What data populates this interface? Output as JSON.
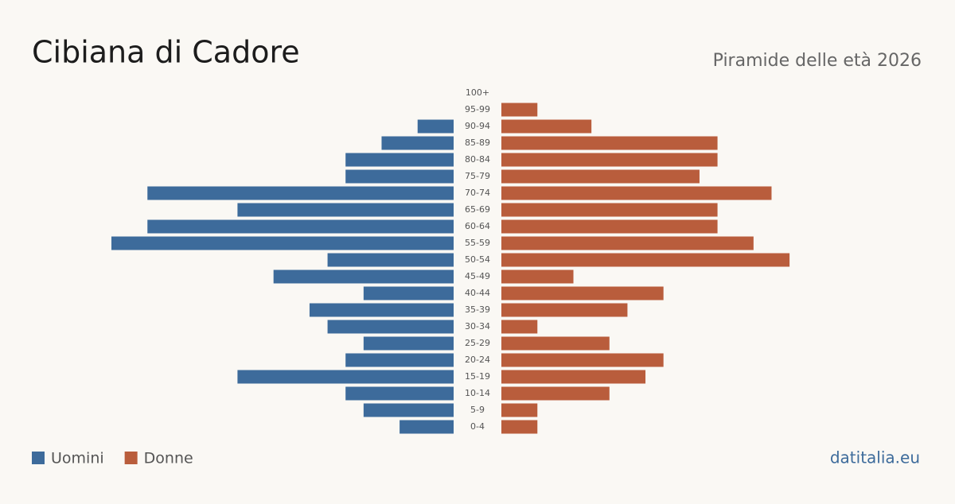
{
  "chart_data": {
    "type": "pyramid",
    "title": "Cibiana di Cadore",
    "subtitle": "Piramide delle età 2026",
    "source": "datitalia.eu",
    "categories": [
      "100+",
      "95-99",
      "90-94",
      "85-89",
      "80-84",
      "75-79",
      "70-74",
      "65-69",
      "60-64",
      "55-59",
      "50-54",
      "45-49",
      "40-44",
      "35-39",
      "30-34",
      "25-29",
      "20-24",
      "15-19",
      "10-14",
      "5-9",
      "0-4"
    ],
    "series": [
      {
        "name": "Uomini",
        "color": "#3d6b9b",
        "values": [
          0,
          0,
          2,
          4,
          6,
          6,
          17,
          12,
          17,
          19,
          7,
          10,
          5,
          8,
          7,
          5,
          6,
          12,
          6,
          5,
          3
        ]
      },
      {
        "name": "Donne",
        "color": "#b95d3c",
        "values": [
          0,
          2,
          5,
          12,
          12,
          11,
          15,
          12,
          12,
          14,
          16,
          4,
          9,
          7,
          2,
          6,
          9,
          8,
          6,
          2,
          2
        ]
      }
    ]
  }
}
